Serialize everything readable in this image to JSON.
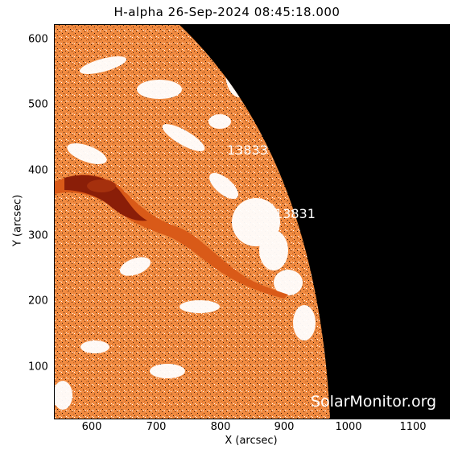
{
  "title": "H-alpha 26-Sep-2024 08:45:18.000",
  "xlabel": "X (arcsec)",
  "ylabel": "Y (arcsec)",
  "x_ticks": [
    "600",
    "700",
    "800",
    "900",
    "1000",
    "1100"
  ],
  "y_ticks": [
    "100",
    "200",
    "300",
    "400",
    "500",
    "600"
  ],
  "regions": [
    "13833",
    "13831"
  ],
  "watermark": "SolarMonitor.org",
  "colors": {
    "background_space": "#000000",
    "chromosphere": "#f08a40",
    "filament": "#8a1e08",
    "plage": "#ffffff"
  }
}
